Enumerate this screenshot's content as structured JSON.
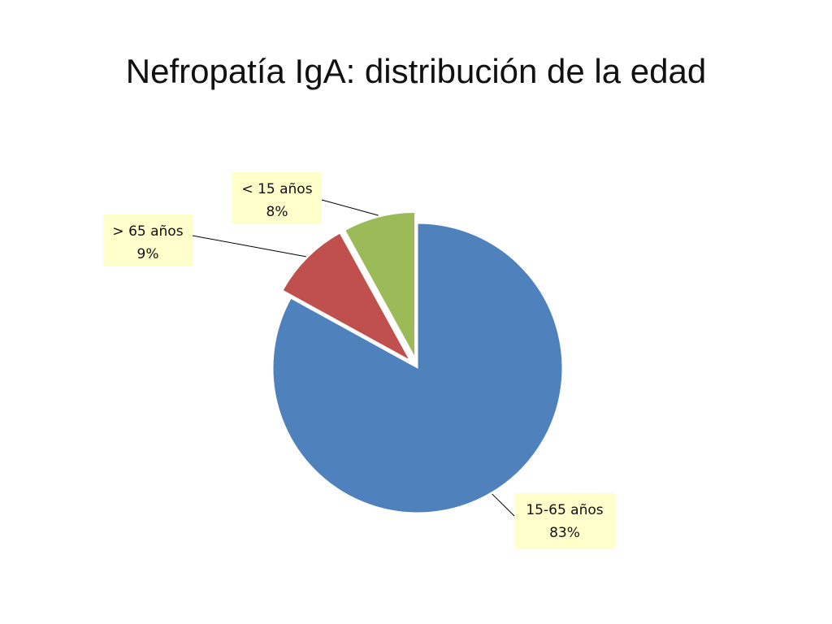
{
  "slide": {
    "title": "Nefropatía IgA: distribución de la edad"
  },
  "chart_data": {
    "type": "pie",
    "title": "",
    "categories": [
      "15-65 años",
      "> 65 años",
      "< 15 años"
    ],
    "values": [
      83,
      9,
      8
    ],
    "value_labels": [
      "83%",
      "9%",
      "8%"
    ],
    "colors": [
      "#4f81bd",
      "#c0504d",
      "#9bbb59"
    ],
    "exploded": [
      false,
      true,
      true
    ],
    "legend": "none",
    "label_background": "#ffffcc"
  }
}
